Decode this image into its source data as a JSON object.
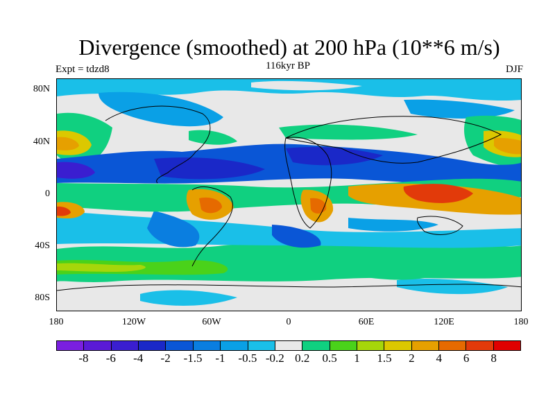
{
  "title": "Divergence (smoothed) at 200 hPa (10**6 m/s)",
  "expt_label": "Expt = tdzd8",
  "period_label": "116kyr BP",
  "season_label": "DJF",
  "map": {
    "lat_ticks": [
      "80N",
      "40N",
      "0",
      "40S",
      "80S"
    ],
    "lon_ticks": [
      "180",
      "120W",
      "60W",
      "0",
      "60E",
      "120E",
      "180"
    ],
    "background_color": "#e8e8e8"
  },
  "colorbar": {
    "colors": [
      "#7a1fe0",
      "#5a1ad6",
      "#3a1ed0",
      "#1a28c8",
      "#0a56d6",
      "#0a7ee0",
      "#0aa0e6",
      "#1abfe8",
      "#e8e8e8",
      "#10d080",
      "#4ad21a",
      "#a6d60a",
      "#dcc800",
      "#e6a000",
      "#e66a00",
      "#e23a0a",
      "#e00000"
    ],
    "labels": [
      "-8",
      "-6",
      "-4",
      "-2",
      "-1.5",
      "-1",
      "-0.5",
      "-0.2",
      "0.2",
      "0.5",
      "1",
      "1.5",
      "2",
      "4",
      "6",
      "8"
    ]
  }
}
